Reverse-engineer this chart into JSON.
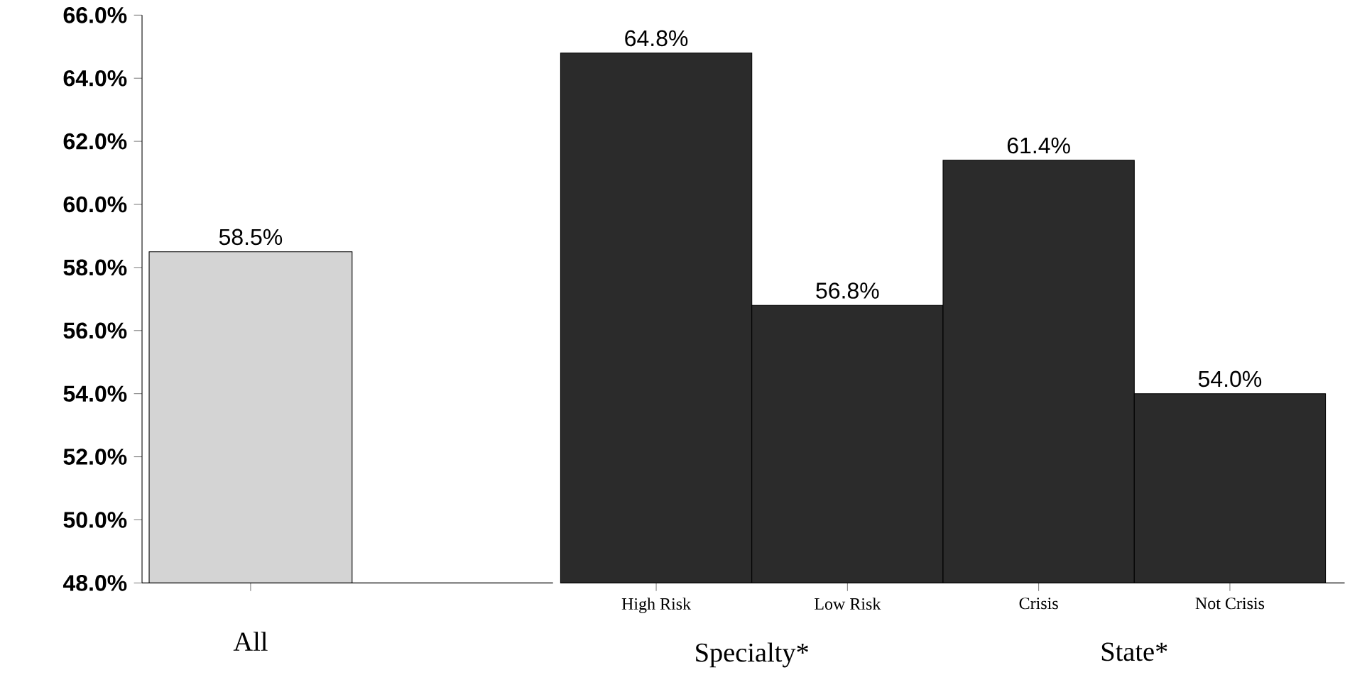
{
  "chart_data": [
    {
      "type": "bar",
      "categories": [
        "All"
      ],
      "values": [
        58.5
      ],
      "colors": [
        "#d4d4d4"
      ],
      "value_labels": [
        "58.5%"
      ],
      "ylim": [
        48,
        66
      ],
      "yticks": [
        {
          "value": 48,
          "label": "48.0%"
        },
        {
          "value": 50,
          "label": "50.0%"
        },
        {
          "value": 52,
          "label": "52.0%"
        },
        {
          "value": 54,
          "label": "54.0%"
        },
        {
          "value": 56,
          "label": "56.0%"
        },
        {
          "value": 58,
          "label": "58.0%"
        },
        {
          "value": 60,
          "label": "60.0%"
        },
        {
          "value": 62,
          "label": "62.0%"
        },
        {
          "value": 64,
          "label": "64.0%"
        },
        {
          "value": 66,
          "label": "66.0%"
        }
      ],
      "grid": false
    },
    {
      "type": "bar",
      "categories": [
        "High Risk",
        "Low Risk",
        "Crisis",
        "Not Crisis"
      ],
      "values": [
        64.8,
        56.8,
        61.4,
        54.0
      ],
      "colors": [
        "#2b2b2b",
        "#2b2b2b",
        "#2b2b2b",
        "#2b2b2b"
      ],
      "value_labels": [
        "64.8%",
        "56.8%",
        "61.4%",
        "54.0%"
      ],
      "ylim": [
        48,
        66
      ],
      "tick_labels": "x",
      "annotations": [
        "Specialty*",
        "State*"
      ],
      "grid": false
    }
  ]
}
